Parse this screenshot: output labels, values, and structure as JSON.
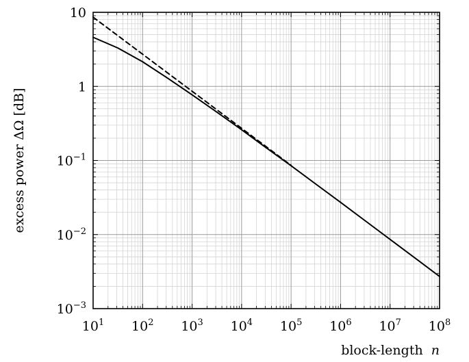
{
  "chart_data": {
    "type": "line",
    "title": "",
    "xlabel": "block-length",
    "xlabel_var": "n",
    "ylabel": "excess power ΔΩ [dB]",
    "xscale": "log",
    "yscale": "log",
    "xlim": [
      10,
      100000000
    ],
    "ylim": [
      0.001,
      10
    ],
    "grid": true,
    "legend": "none",
    "x_ticks": [
      {
        "base": "10",
        "exp": "1",
        "value": 10
      },
      {
        "base": "10",
        "exp": "2",
        "value": 100
      },
      {
        "base": "10",
        "exp": "3",
        "value": 1000
      },
      {
        "base": "10",
        "exp": "4",
        "value": 10000
      },
      {
        "base": "10",
        "exp": "5",
        "value": 100000
      },
      {
        "base": "10",
        "exp": "6",
        "value": 1000000
      },
      {
        "base": "10",
        "exp": "7",
        "value": 10000000
      },
      {
        "base": "10",
        "exp": "8",
        "value": 100000000
      }
    ],
    "y_ticks": [
      {
        "base": "10",
        "exp": "",
        "value": 10
      },
      {
        "base": "1",
        "exp": "",
        "value": 1
      },
      {
        "base": "10",
        "exp": "−1",
        "value": 0.1
      },
      {
        "base": "10",
        "exp": "−2",
        "value": 0.01
      },
      {
        "base": "10",
        "exp": "−3",
        "value": 0.001
      }
    ],
    "series": [
      {
        "style": "solid",
        "color": "#000000",
        "x": [
          10,
          31.6,
          100,
          316,
          1000,
          3160,
          10000,
          31600,
          100000,
          316000,
          1000000,
          3160000,
          10000000,
          31600000,
          100000000
        ],
        "y": [
          4.6,
          3.3,
          2.15,
          1.3,
          0.77,
          0.45,
          0.26,
          0.148,
          0.085,
          0.048,
          0.0272,
          0.0153,
          0.0086,
          0.00485,
          0.00272
        ]
      },
      {
        "style": "dashed",
        "color": "#000000",
        "x": [
          10,
          100,
          1000,
          10000,
          100000
        ],
        "y": [
          8.6,
          2.72,
          0.86,
          0.272,
          0.086
        ]
      }
    ]
  }
}
